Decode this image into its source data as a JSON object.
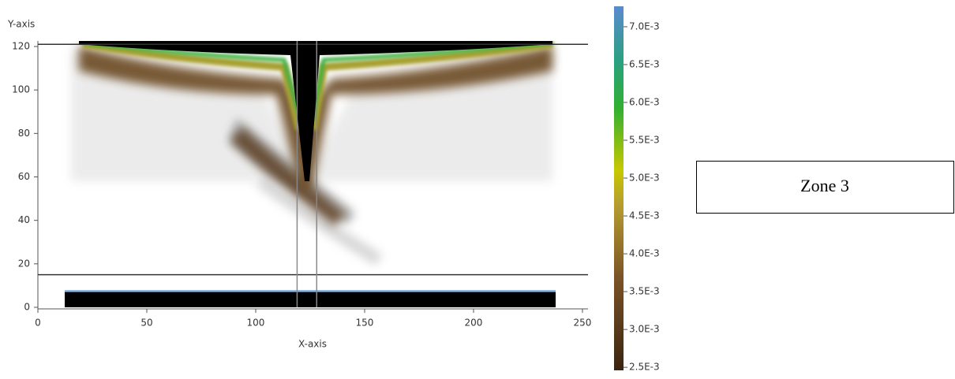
{
  "chart_data": {
    "type": "heatmap",
    "x_label": "X-axis",
    "y_label": "Y-axis",
    "xlim": [
      0,
      252
    ],
    "ylim": [
      0,
      122
    ],
    "xticks": [
      0,
      50,
      100,
      150,
      200,
      250
    ],
    "yticks": [
      0,
      20,
      40,
      60,
      80,
      100,
      120
    ],
    "hlines": [
      121,
      15
    ],
    "vlines": [
      119,
      128
    ],
    "colorbar": {
      "lim": [
        0.00246,
        0.00727
      ],
      "ticks": [
        {
          "value": 0.007,
          "label": "7.0E-3"
        },
        {
          "value": 0.0065,
          "label": "6.5E-3"
        },
        {
          "value": 0.006,
          "label": "6.0E-3"
        },
        {
          "value": 0.0055,
          "label": "5.5E-3"
        },
        {
          "value": 0.005,
          "label": "5.0E-3"
        },
        {
          "value": 0.0045,
          "label": "4.5E-3"
        },
        {
          "value": 0.004,
          "label": "4.0E-3"
        },
        {
          "value": 0.0035,
          "label": "3.5E-3"
        },
        {
          "value": 0.003,
          "label": "3.0E-3"
        },
        {
          "value": 0.0025,
          "label": "2.5E-3"
        }
      ]
    },
    "annotation": "Zone 3"
  }
}
